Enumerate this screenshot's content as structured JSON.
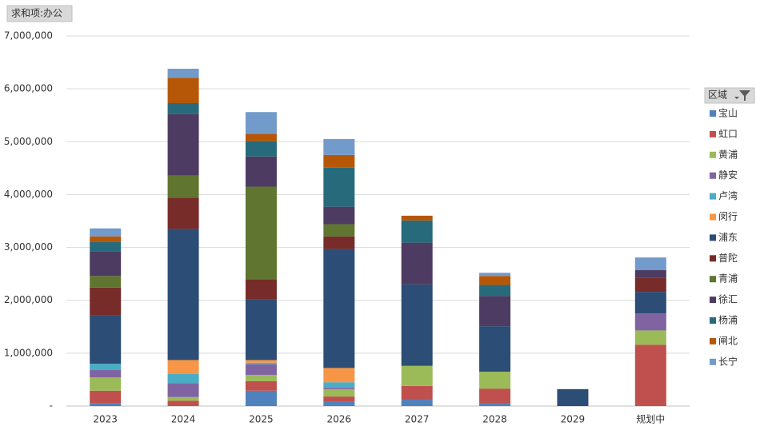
{
  "chart_data": {
    "type": "stacked_bar",
    "field_button": "求和项:办公",
    "legend_title": "区域",
    "categories": [
      "2023",
      "2024",
      "2025",
      "2026",
      "2027",
      "2028",
      "2029",
      "规划中"
    ],
    "ylim": [
      0,
      7000000
    ],
    "yticks": [
      {
        "value": 0,
        "label": "-"
      },
      {
        "value": 1000000,
        "label": "1,000,000"
      },
      {
        "value": 2000000,
        "label": "2,000,000"
      },
      {
        "value": 3000000,
        "label": "3,000,000"
      },
      {
        "value": 4000000,
        "label": "4,000,000"
      },
      {
        "value": 5000000,
        "label": "5,000,000"
      },
      {
        "value": 6000000,
        "label": "6,000,000"
      },
      {
        "value": 7000000,
        "label": "7,000,000"
      }
    ],
    "grid": true,
    "series": [
      {
        "name": "宝山",
        "color": "#4F81BD",
        "values": [
          50000,
          null,
          290000,
          90000,
          120000,
          60000,
          null,
          null
        ]
      },
      {
        "name": "虹口",
        "color": "#C0504D",
        "values": [
          240000,
          100000,
          180000,
          90000,
          260000,
          270000,
          null,
          1160000
        ]
      },
      {
        "name": "黄浦",
        "color": "#9BBB59",
        "values": [
          250000,
          70000,
          120000,
          140000,
          380000,
          320000,
          null,
          270000
        ]
      },
      {
        "name": "静安",
        "color": "#8064A2",
        "values": [
          140000,
          260000,
          200000,
          30000,
          null,
          null,
          null,
          320000
        ]
      },
      {
        "name": "卢湾",
        "color": "#4BACC6",
        "values": [
          120000,
          180000,
          30000,
          100000,
          null,
          null,
          null,
          null
        ]
      },
      {
        "name": "闵行",
        "color": "#F79646",
        "values": [
          null,
          260000,
          50000,
          270000,
          null,
          null,
          null,
          null
        ]
      },
      {
        "name": "浦东",
        "color": "#2C4D75",
        "values": [
          910000,
          2480000,
          1150000,
          2250000,
          1540000,
          860000,
          320000,
          410000
        ]
      },
      {
        "name": "普陀",
        "color": "#772C2A",
        "values": [
          530000,
          590000,
          380000,
          240000,
          null,
          null,
          null,
          270000
        ]
      },
      {
        "name": "青浦",
        "color": "#5F7530",
        "values": [
          220000,
          420000,
          1750000,
          230000,
          null,
          null,
          null,
          null
        ]
      },
      {
        "name": "徐汇",
        "color": "#4D3B62",
        "values": [
          470000,
          1160000,
          570000,
          330000,
          790000,
          570000,
          null,
          140000
        ]
      },
      {
        "name": "杨浦",
        "color": "#276A7C",
        "values": [
          170000,
          210000,
          290000,
          740000,
          420000,
          210000,
          null,
          null
        ]
      },
      {
        "name": "闸北",
        "color": "#B65708",
        "values": [
          110000,
          480000,
          140000,
          240000,
          90000,
          170000,
          null,
          null
        ]
      },
      {
        "name": "长宁",
        "color": "#729ACA",
        "values": [
          150000,
          170000,
          410000,
          300000,
          null,
          60000,
          null,
          240000
        ]
      }
    ]
  }
}
